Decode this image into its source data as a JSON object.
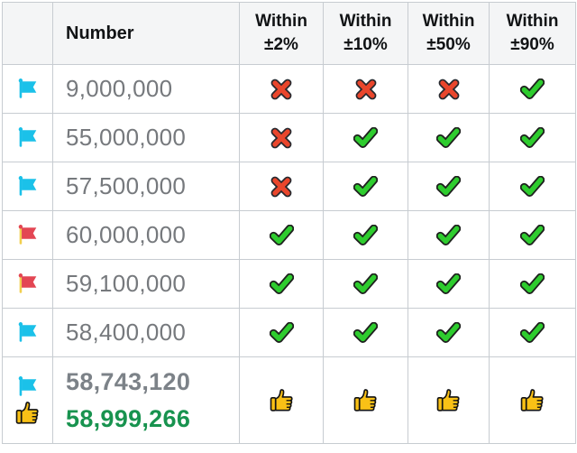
{
  "table": {
    "headers": [
      {
        "label": ""
      },
      {
        "label": "Number"
      },
      {
        "line1": "Within",
        "line2": "±2%"
      },
      {
        "line1": "Within",
        "line2": "±10%"
      },
      {
        "line1": "Within",
        "line2": "±50%"
      },
      {
        "line1": "Within",
        "line2": "±90%"
      }
    ],
    "rows": [
      {
        "flag": "cyan",
        "number": "9,000,000",
        "marks": [
          "cross",
          "cross",
          "cross",
          "check"
        ]
      },
      {
        "flag": "cyan",
        "number": "55,000,000",
        "marks": [
          "cross",
          "check",
          "check",
          "check"
        ]
      },
      {
        "flag": "cyan",
        "number": "57,500,000",
        "marks": [
          "cross",
          "check",
          "check",
          "check"
        ]
      },
      {
        "flag": "red",
        "number": "60,000,000",
        "marks": [
          "check",
          "check",
          "check",
          "check"
        ]
      },
      {
        "flag": "red",
        "number": "59,100,000",
        "marks": [
          "check",
          "check",
          "check",
          "check"
        ]
      },
      {
        "flag": "cyan",
        "number": "58,400,000",
        "marks": [
          "check",
          "check",
          "check",
          "check"
        ]
      }
    ],
    "result_row": {
      "flag": "cyan",
      "flag_companion_icon": "thumbs-up",
      "guess_number": "58,743,120",
      "actual_number": "58,999,266",
      "marks": [
        "thumbs-up",
        "thumbs-up",
        "thumbs-up",
        "thumbs-up"
      ]
    }
  },
  "colors": {
    "flag_cyan": "#1bc1e9",
    "flag_red": "#e34653",
    "flag_pole_gold": "#f2cf4e",
    "check_green": "#2ecc2e",
    "check_outline": "#1e211e",
    "cross_red": "#e9462c",
    "cross_outline": "#25282e",
    "thumb_gold": "#f9c116",
    "thumb_outline": "#131313",
    "number_gray": "#76797d",
    "guess_gray": "#7c8288",
    "actual_green": "#18934f",
    "header_bg": "#f4f5f6",
    "border": "#c7ccd1"
  }
}
